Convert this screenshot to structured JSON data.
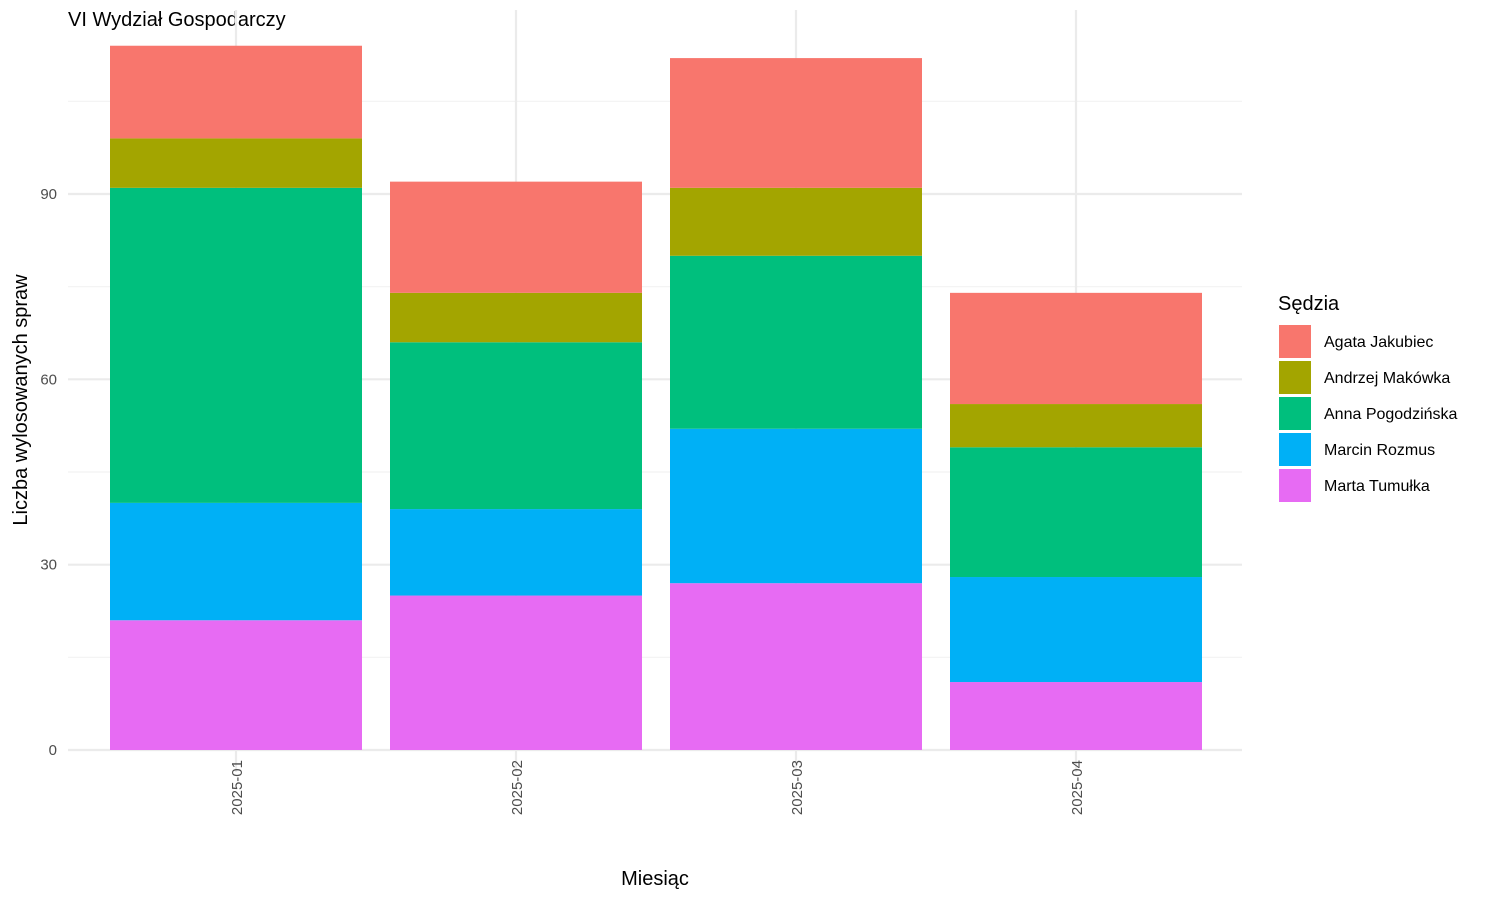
{
  "chart_data": {
    "type": "bar",
    "stacked": true,
    "title": "VI Wydział Gospodarczy",
    "xlabel": "Miesiąc",
    "ylabel": "Liczba wylosowanych spraw",
    "categories": [
      "2025-01",
      "2025-02",
      "2025-03",
      "2025-04"
    ],
    "yticks": [
      0,
      30,
      60,
      90
    ],
    "ylim": [
      0,
      120
    ],
    "grid": true,
    "legend_title": "Sędzia",
    "legend_position": "right",
    "series": [
      {
        "name": "Agata Jakubiec",
        "color": "#F8766D",
        "values": [
          15,
          18,
          21,
          18
        ]
      },
      {
        "name": "Andrzej Makówka",
        "color": "#A3A500",
        "values": [
          8,
          8,
          11,
          7
        ]
      },
      {
        "name": "Anna Pogodzińska",
        "color": "#00BF7D",
        "values": [
          51,
          27,
          28,
          21
        ]
      },
      {
        "name": "Marcin Rozmus",
        "color": "#00B0F6",
        "values": [
          19,
          14,
          25,
          17
        ]
      },
      {
        "name": "Marta Tumułka",
        "color": "#E76BF3",
        "values": [
          21,
          25,
          27,
          11
        ]
      }
    ]
  }
}
